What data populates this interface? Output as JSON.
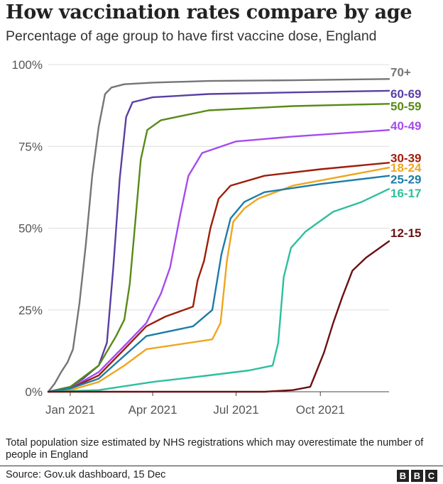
{
  "header": {
    "title": "How vaccination rates compare by age",
    "subtitle": "Percentage of age group to have first vaccine dose, England"
  },
  "footer": {
    "note": "Total population size estimated by NHS registrations which may overestimate the number of people in England",
    "source": "Source: Gov.uk dashboard, 15 Dec",
    "logo_letters": [
      "B",
      "B",
      "C"
    ]
  },
  "chart_data": {
    "type": "line",
    "title": "How vaccination rates compare by age",
    "subtitle": "Percentage of age group to have first vaccine dose, England",
    "xlabel": "",
    "ylabel": "",
    "x_range": [
      "2020-12-08",
      "2021-12-15"
    ],
    "ylim": [
      0,
      100
    ],
    "y_ticks": [
      0,
      25,
      50,
      75,
      100
    ],
    "y_tick_labels": [
      "0%",
      "25%",
      "50%",
      "75%",
      "100%"
    ],
    "x_ticks": [
      "2021-01-01",
      "2021-04-01",
      "2021-07-01",
      "2021-10-01"
    ],
    "x_tick_labels": [
      "Jan 2021",
      "Apr 2021",
      "Jul 2021",
      "Oct 2021"
    ],
    "grid": "horizontal",
    "legend": "direct labels at line ends (right)",
    "series": [
      {
        "name": "70+",
        "color": "#757575",
        "points": [
          [
            "2020-12-08",
            0
          ],
          [
            "2020-12-15",
            2.5
          ],
          [
            "2020-12-22",
            6
          ],
          [
            "2020-12-29",
            9
          ],
          [
            "2021-01-04",
            13
          ],
          [
            "2021-01-11",
            27
          ],
          [
            "2021-01-18",
            45
          ],
          [
            "2021-01-25",
            66
          ],
          [
            "2021-02-01",
            81
          ],
          [
            "2021-02-08",
            91
          ],
          [
            "2021-02-15",
            93
          ],
          [
            "2021-03-01",
            94
          ],
          [
            "2021-04-01",
            94.5
          ],
          [
            "2021-06-01",
            95
          ],
          [
            "2021-09-01",
            95.2
          ],
          [
            "2021-12-15",
            95.6
          ]
        ]
      },
      {
        "name": "60-69",
        "color": "#5a3ea4",
        "points": [
          [
            "2020-12-08",
            0
          ],
          [
            "2021-01-01",
            1.5
          ],
          [
            "2021-01-15",
            4
          ],
          [
            "2021-02-01",
            8
          ],
          [
            "2021-02-10",
            15
          ],
          [
            "2021-02-17",
            38
          ],
          [
            "2021-02-24",
            65
          ],
          [
            "2021-03-03",
            84
          ],
          [
            "2021-03-10",
            88.5
          ],
          [
            "2021-04-01",
            90
          ],
          [
            "2021-06-01",
            91
          ],
          [
            "2021-09-01",
            91.5
          ],
          [
            "2021-12-15",
            92
          ]
        ]
      },
      {
        "name": "50-59",
        "color": "#588a16",
        "points": [
          [
            "2020-12-08",
            0
          ],
          [
            "2021-01-01",
            1.5
          ],
          [
            "2021-02-01",
            8
          ],
          [
            "2021-02-20",
            17
          ],
          [
            "2021-03-01",
            22
          ],
          [
            "2021-03-07",
            33
          ],
          [
            "2021-03-13",
            52
          ],
          [
            "2021-03-19",
            71
          ],
          [
            "2021-03-26",
            80
          ],
          [
            "2021-04-10",
            83
          ],
          [
            "2021-06-01",
            86
          ],
          [
            "2021-09-01",
            87.3
          ],
          [
            "2021-12-15",
            88
          ]
        ]
      },
      {
        "name": "40-49",
        "color": "#a54bee",
        "points": [
          [
            "2020-12-08",
            0
          ],
          [
            "2021-01-01",
            1
          ],
          [
            "2021-02-01",
            6
          ],
          [
            "2021-03-01",
            14
          ],
          [
            "2021-03-25",
            21
          ],
          [
            "2021-04-10",
            30
          ],
          [
            "2021-04-20",
            38
          ],
          [
            "2021-05-01",
            54
          ],
          [
            "2021-05-10",
            66
          ],
          [
            "2021-05-25",
            73
          ],
          [
            "2021-07-01",
            76.5
          ],
          [
            "2021-09-01",
            78
          ],
          [
            "2021-12-15",
            80
          ]
        ]
      },
      {
        "name": "30-39",
        "color": "#9d1e0a",
        "points": [
          [
            "2020-12-08",
            0
          ],
          [
            "2021-01-01",
            1
          ],
          [
            "2021-02-01",
            5
          ],
          [
            "2021-03-01",
            13
          ],
          [
            "2021-03-25",
            20
          ],
          [
            "2021-04-15",
            23
          ],
          [
            "2021-05-15",
            26
          ],
          [
            "2021-05-20",
            34
          ],
          [
            "2021-05-27",
            40
          ],
          [
            "2021-06-03",
            50
          ],
          [
            "2021-06-12",
            59
          ],
          [
            "2021-06-25",
            63
          ],
          [
            "2021-08-01",
            66
          ],
          [
            "2021-10-01",
            68
          ],
          [
            "2021-12-15",
            70
          ]
        ]
      },
      {
        "name": "18-24",
        "color": "#f0a51e",
        "points": [
          [
            "2020-12-08",
            0
          ],
          [
            "2021-01-01",
            0.5
          ],
          [
            "2021-02-01",
            3
          ],
          [
            "2021-03-01",
            8
          ],
          [
            "2021-03-25",
            13
          ],
          [
            "2021-06-05",
            16
          ],
          [
            "2021-06-14",
            21
          ],
          [
            "2021-06-21",
            40
          ],
          [
            "2021-06-28",
            52
          ],
          [
            "2021-07-10",
            56
          ],
          [
            "2021-07-25",
            59
          ],
          [
            "2021-09-01",
            63
          ],
          [
            "2021-12-15",
            68.5
          ]
        ]
      },
      {
        "name": "25-29",
        "color": "#1c7ca8",
        "points": [
          [
            "2020-12-08",
            0
          ],
          [
            "2021-01-01",
            1
          ],
          [
            "2021-02-01",
            4
          ],
          [
            "2021-03-01",
            11
          ],
          [
            "2021-03-25",
            17
          ],
          [
            "2021-05-15",
            20
          ],
          [
            "2021-06-05",
            25
          ],
          [
            "2021-06-15",
            42
          ],
          [
            "2021-06-25",
            53
          ],
          [
            "2021-07-10",
            58
          ],
          [
            "2021-08-01",
            61
          ],
          [
            "2021-10-01",
            63.5
          ],
          [
            "2021-12-15",
            66
          ]
        ]
      },
      {
        "name": "16-17",
        "color": "#2dbf9d",
        "points": [
          [
            "2020-12-08",
            0
          ],
          [
            "2021-02-01",
            0.5
          ],
          [
            "2021-04-01",
            3
          ],
          [
            "2021-06-01",
            5
          ],
          [
            "2021-07-15",
            6.5
          ],
          [
            "2021-08-10",
            8
          ],
          [
            "2021-08-16",
            15
          ],
          [
            "2021-08-22",
            35
          ],
          [
            "2021-08-30",
            44
          ],
          [
            "2021-09-15",
            49
          ],
          [
            "2021-10-15",
            55
          ],
          [
            "2021-11-15",
            58
          ],
          [
            "2021-12-15",
            62
          ]
        ]
      },
      {
        "name": "12-15",
        "color": "#6b1012",
        "points": [
          [
            "2020-12-08",
            0
          ],
          [
            "2021-08-01",
            0
          ],
          [
            "2021-09-01",
            0.5
          ],
          [
            "2021-09-20",
            1.5
          ],
          [
            "2021-09-25",
            5
          ],
          [
            "2021-10-05",
            12
          ],
          [
            "2021-10-15",
            21
          ],
          [
            "2021-10-25",
            29
          ],
          [
            "2021-11-05",
            37
          ],
          [
            "2021-11-20",
            41
          ],
          [
            "2021-12-15",
            46
          ]
        ]
      }
    ]
  }
}
